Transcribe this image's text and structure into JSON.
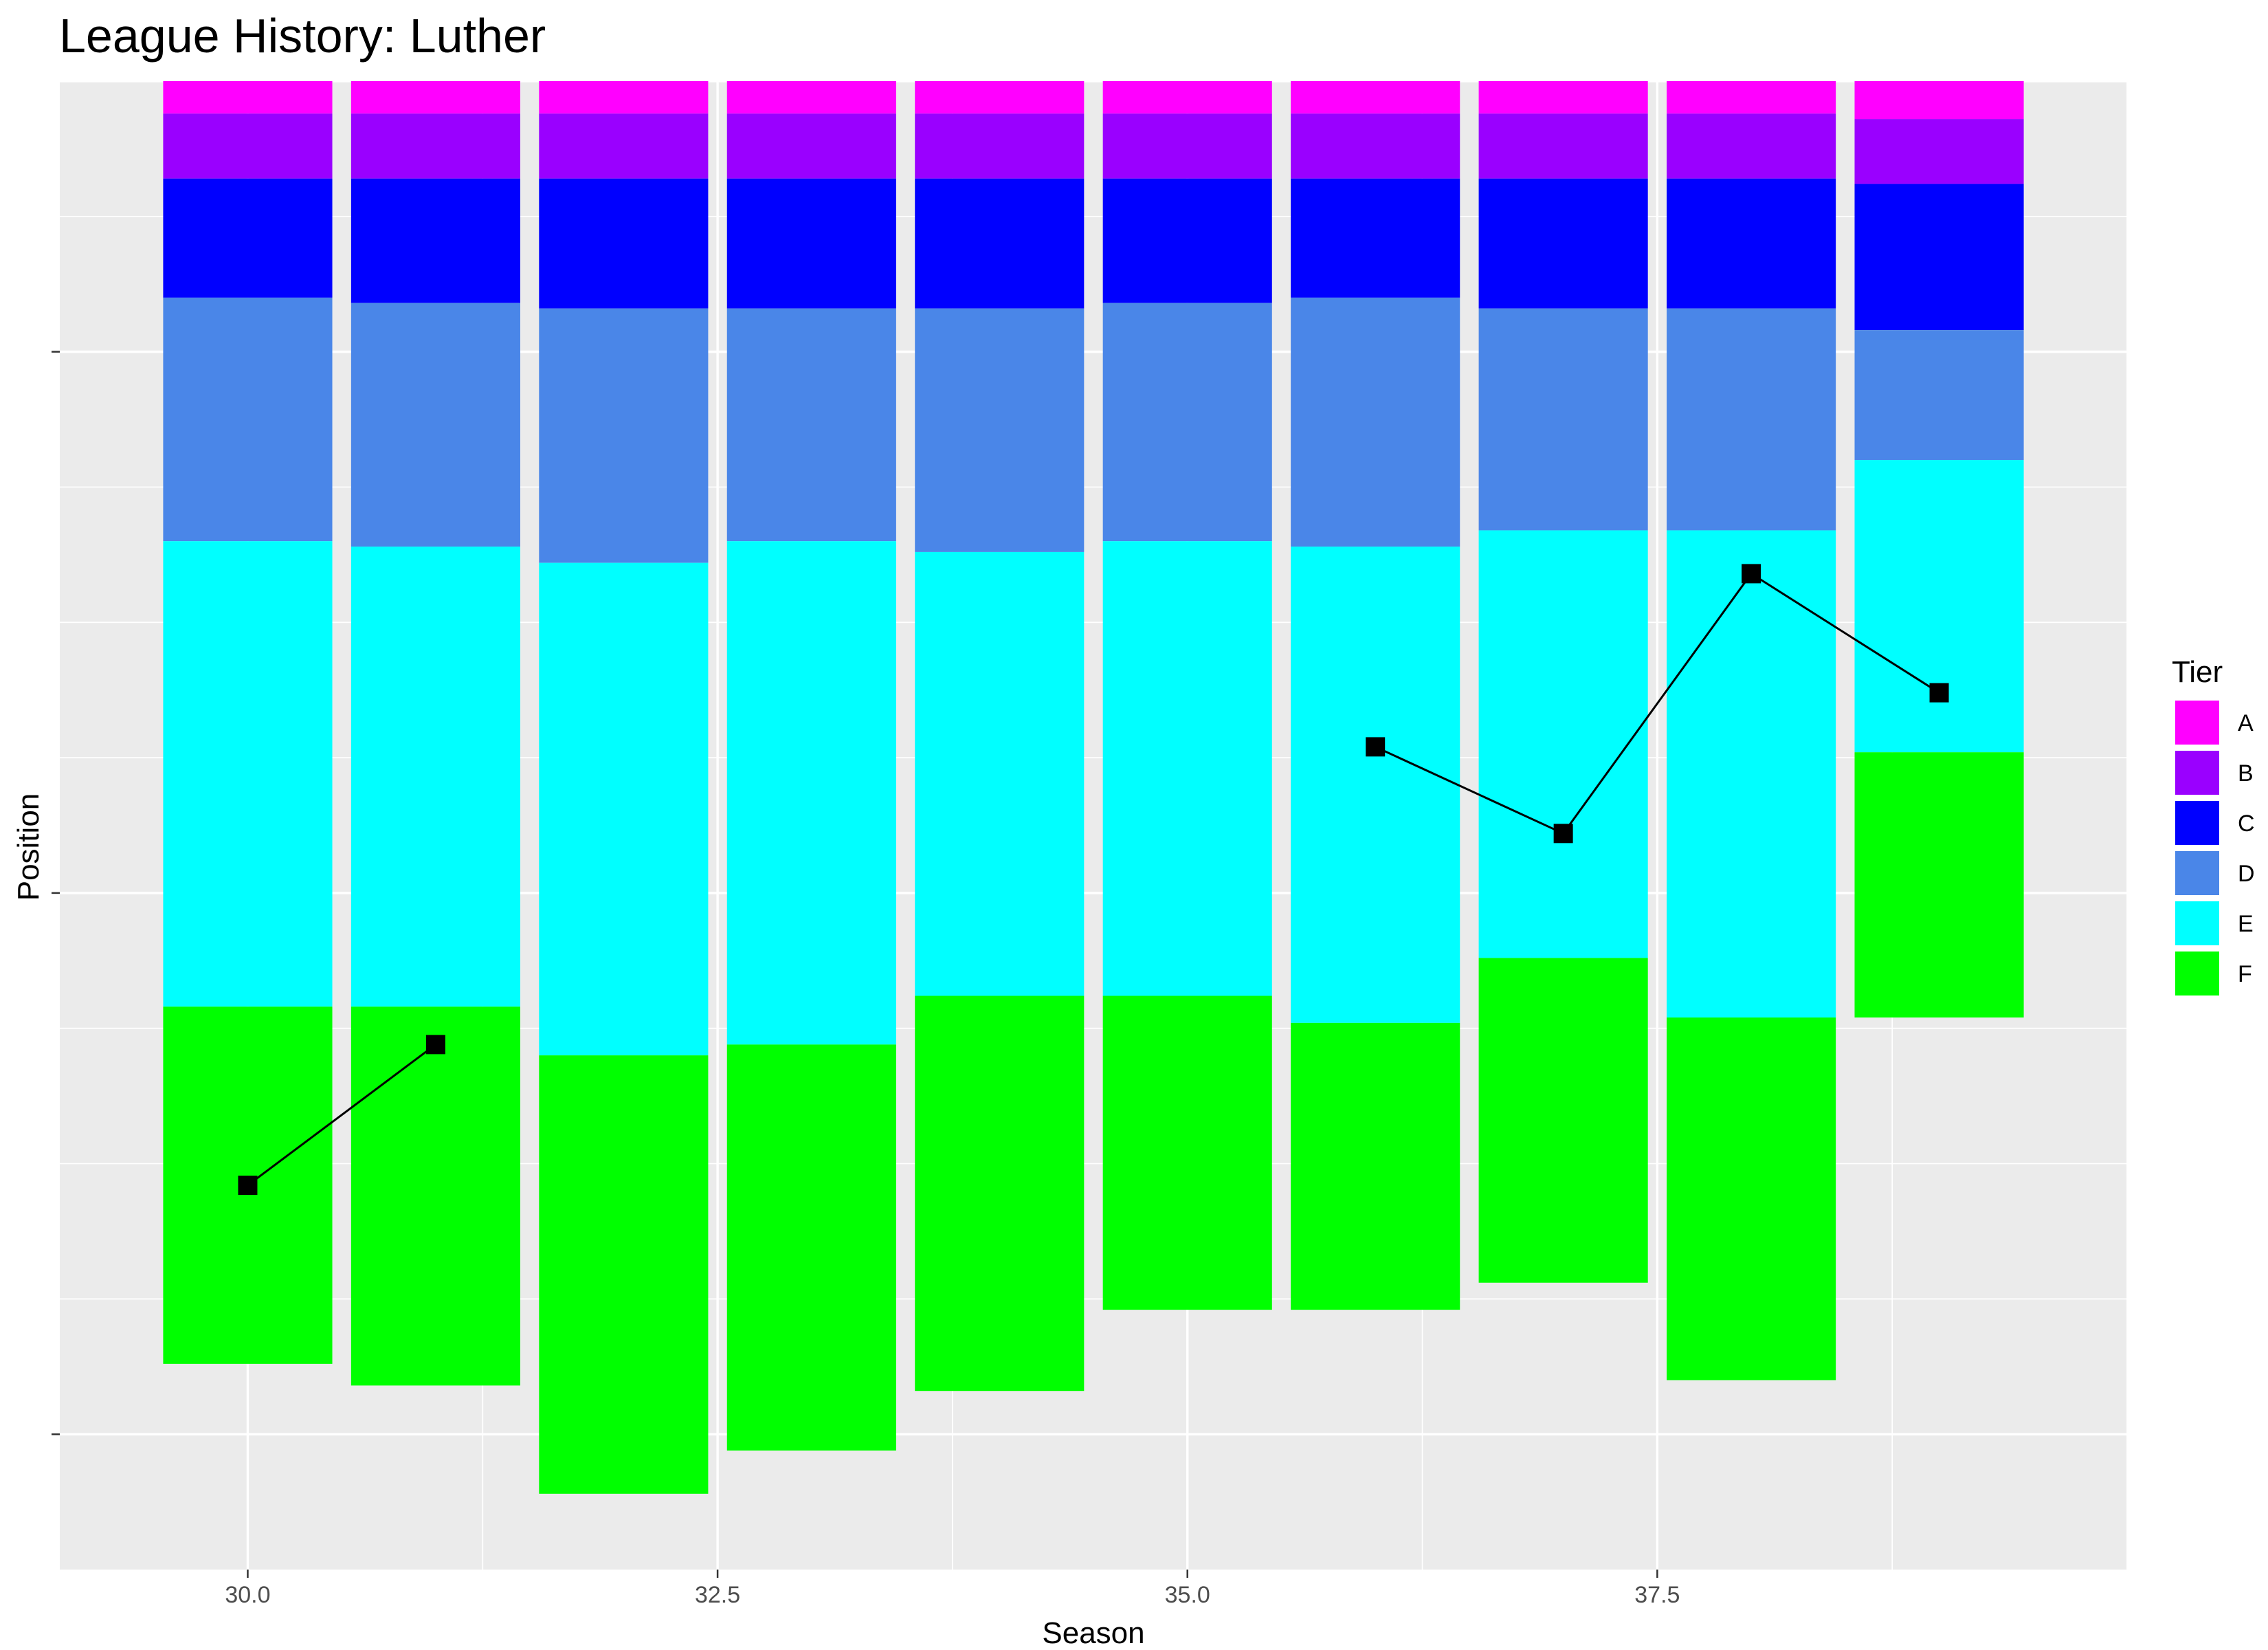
{
  "chart_data": {
    "type": "bar",
    "subtype": "stacked-bar-with-line",
    "title": "League History: Luther",
    "xlabel": "Season",
    "ylabel": "Position",
    "xlim": [
      29.0,
      40.0
    ],
    "ylim": [
      -27.5,
      0
    ],
    "x_ticks": [
      30.0,
      32.5,
      35.0,
      37.5
    ],
    "x_tick_labels": [
      "30.0",
      "32.5",
      "35.0",
      "37.5"
    ],
    "y_ticks": [
      -25,
      -15,
      -5
    ],
    "y_tick_labels": [
      "",
      "",
      ""
    ],
    "grid": true,
    "legend": {
      "title": "Tier",
      "placement": "right",
      "entries": [
        {
          "label": "A",
          "color": "#FF00FF"
        },
        {
          "label": "B",
          "color": "#9A00FF"
        },
        {
          "label": "C",
          "color": "#0000FF"
        },
        {
          "label": "D",
          "color": "#4A86E8"
        },
        {
          "label": "E",
          "color": "#00FFFF"
        },
        {
          "label": "F",
          "color": "#00FF00"
        }
      ]
    },
    "bars": [
      {
        "season": 30,
        "tiers": {
          "A": 0.6,
          "B": 1.2,
          "C": 2.2,
          "D": 4.5,
          "E": 8.6,
          "F": 6.6
        }
      },
      {
        "season": 31,
        "tiers": {
          "A": 0.6,
          "B": 1.2,
          "C": 2.3,
          "D": 4.5,
          "E": 8.5,
          "F": 7.0
        }
      },
      {
        "season": 32,
        "tiers": {
          "A": 0.6,
          "B": 1.2,
          "C": 2.4,
          "D": 4.7,
          "E": 9.1,
          "F": 8.1
        }
      },
      {
        "season": 33,
        "tiers": {
          "A": 0.6,
          "B": 1.2,
          "C": 2.4,
          "D": 4.3,
          "E": 9.3,
          "F": 7.5
        }
      },
      {
        "season": 34,
        "tiers": {
          "A": 0.6,
          "B": 1.2,
          "C": 2.4,
          "D": 4.5,
          "E": 8.2,
          "F": 7.3
        }
      },
      {
        "season": 35,
        "tiers": {
          "A": 0.6,
          "B": 1.2,
          "C": 2.3,
          "D": 4.4,
          "E": 8.4,
          "F": 5.8
        }
      },
      {
        "season": 36,
        "tiers": {
          "A": 0.6,
          "B": 1.2,
          "C": 2.2,
          "D": 4.6,
          "E": 8.8,
          "F": 5.3
        }
      },
      {
        "season": 37,
        "tiers": {
          "A": 0.6,
          "B": 1.2,
          "C": 2.4,
          "D": 4.1,
          "E": 7.9,
          "F": 6.0
        }
      },
      {
        "season": 38,
        "tiers": {
          "A": 0.6,
          "B": 1.2,
          "C": 2.4,
          "D": 4.1,
          "E": 9.0,
          "F": 6.7
        }
      },
      {
        "season": 39,
        "tiers": {
          "A": 0.7,
          "B": 1.2,
          "C": 2.7,
          "D": 2.4,
          "E": 5.4,
          "F": 4.9
        }
      }
    ],
    "line": {
      "color": "#000000",
      "segments": [
        [
          {
            "x": 30,
            "y": -20.4
          },
          {
            "x": 31,
            "y": -17.8
          }
        ],
        [
          {
            "x": 36,
            "y": -12.3
          },
          {
            "x": 37,
            "y": -13.9
          },
          {
            "x": 38,
            "y": -9.1
          },
          {
            "x": 39,
            "y": -11.3
          }
        ]
      ]
    }
  }
}
